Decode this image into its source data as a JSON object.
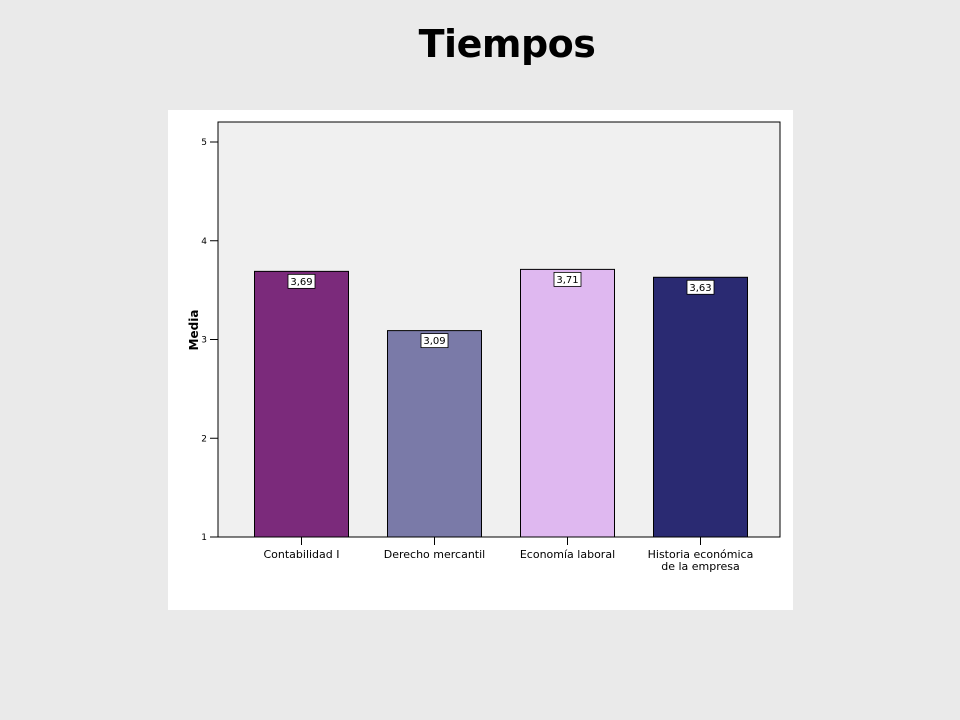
{
  "title": "Tiempos",
  "chart_data": {
    "type": "bar",
    "title": "Tiempos",
    "xlabel": "",
    "ylabel": "Media",
    "ylim": [
      1,
      5
    ],
    "yticks": [
      1,
      2,
      3,
      4,
      5
    ],
    "categories": [
      [
        "Contabilidad I"
      ],
      [
        "Derecho mercantil"
      ],
      [
        "Economía laboral"
      ],
      [
        "Historia económica",
        "de la empresa"
      ]
    ],
    "values": [
      3.69,
      3.09,
      3.71,
      3.63
    ],
    "data_labels": [
      "3,69",
      "3,09",
      "3,71",
      "3,63"
    ],
    "colors": [
      "#7b2a7b",
      "#7a7aa8",
      "#dfb8f0",
      "#2a2a72"
    ],
    "plot_background": "#f0f0f0",
    "grid": false
  }
}
